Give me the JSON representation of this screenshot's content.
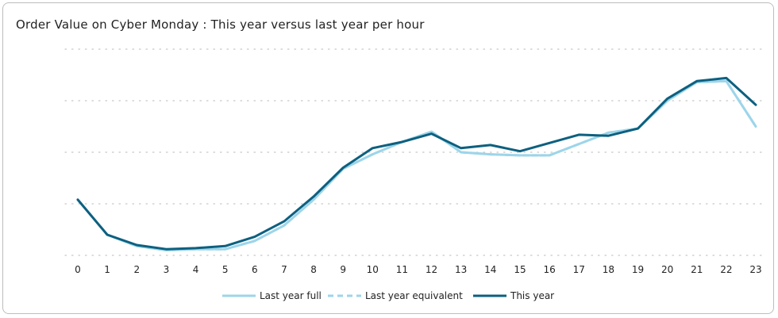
{
  "title": "Order Value on Cyber Monday : This year versus last year per hour",
  "colors": {
    "last_year_full": "#9dd5ea",
    "last_year_equivalent": "#9dd5ea",
    "this_year": "#0d607f",
    "grid": "#c8c8c8"
  },
  "chart_data": {
    "type": "line",
    "title": "Order Value on Cyber Monday : This year versus last year per hour",
    "xlabel": "",
    "ylabel": "",
    "x": [
      0,
      1,
      2,
      3,
      4,
      5,
      6,
      7,
      8,
      9,
      10,
      11,
      12,
      13,
      14,
      15,
      16,
      17,
      18,
      19,
      20,
      21,
      22,
      23
    ],
    "ylim": [
      0,
      100
    ],
    "grid": "horizontal dotted",
    "legend_position": "bottom",
    "series": [
      {
        "name": "Last year full",
        "style": "solid",
        "values": [
          27,
          10,
          4.5,
          2.5,
          3,
          3,
          7,
          14.5,
          27,
          42,
          49,
          55,
          60,
          50,
          49,
          48.5,
          48.5,
          54,
          59.5,
          61.5,
          75,
          84,
          84.5,
          62.5
        ]
      },
      {
        "name": "Last year equivalent",
        "style": "dashed",
        "values": [
          27,
          10,
          4.5,
          2.5,
          3,
          3,
          7,
          14.5,
          27,
          42,
          49,
          55,
          60,
          50,
          49,
          48.5,
          48.5,
          54,
          59.5,
          61.5,
          75,
          84,
          84.5,
          62.5
        ]
      },
      {
        "name": "This year",
        "style": "solid",
        "values": [
          27,
          10,
          5,
          3,
          3.5,
          4.5,
          9,
          16.5,
          28.5,
          42.5,
          52,
          55,
          59,
          52,
          53.5,
          50.5,
          54.5,
          58.5,
          58,
          61.5,
          76,
          84.5,
          86,
          73
        ]
      }
    ]
  }
}
